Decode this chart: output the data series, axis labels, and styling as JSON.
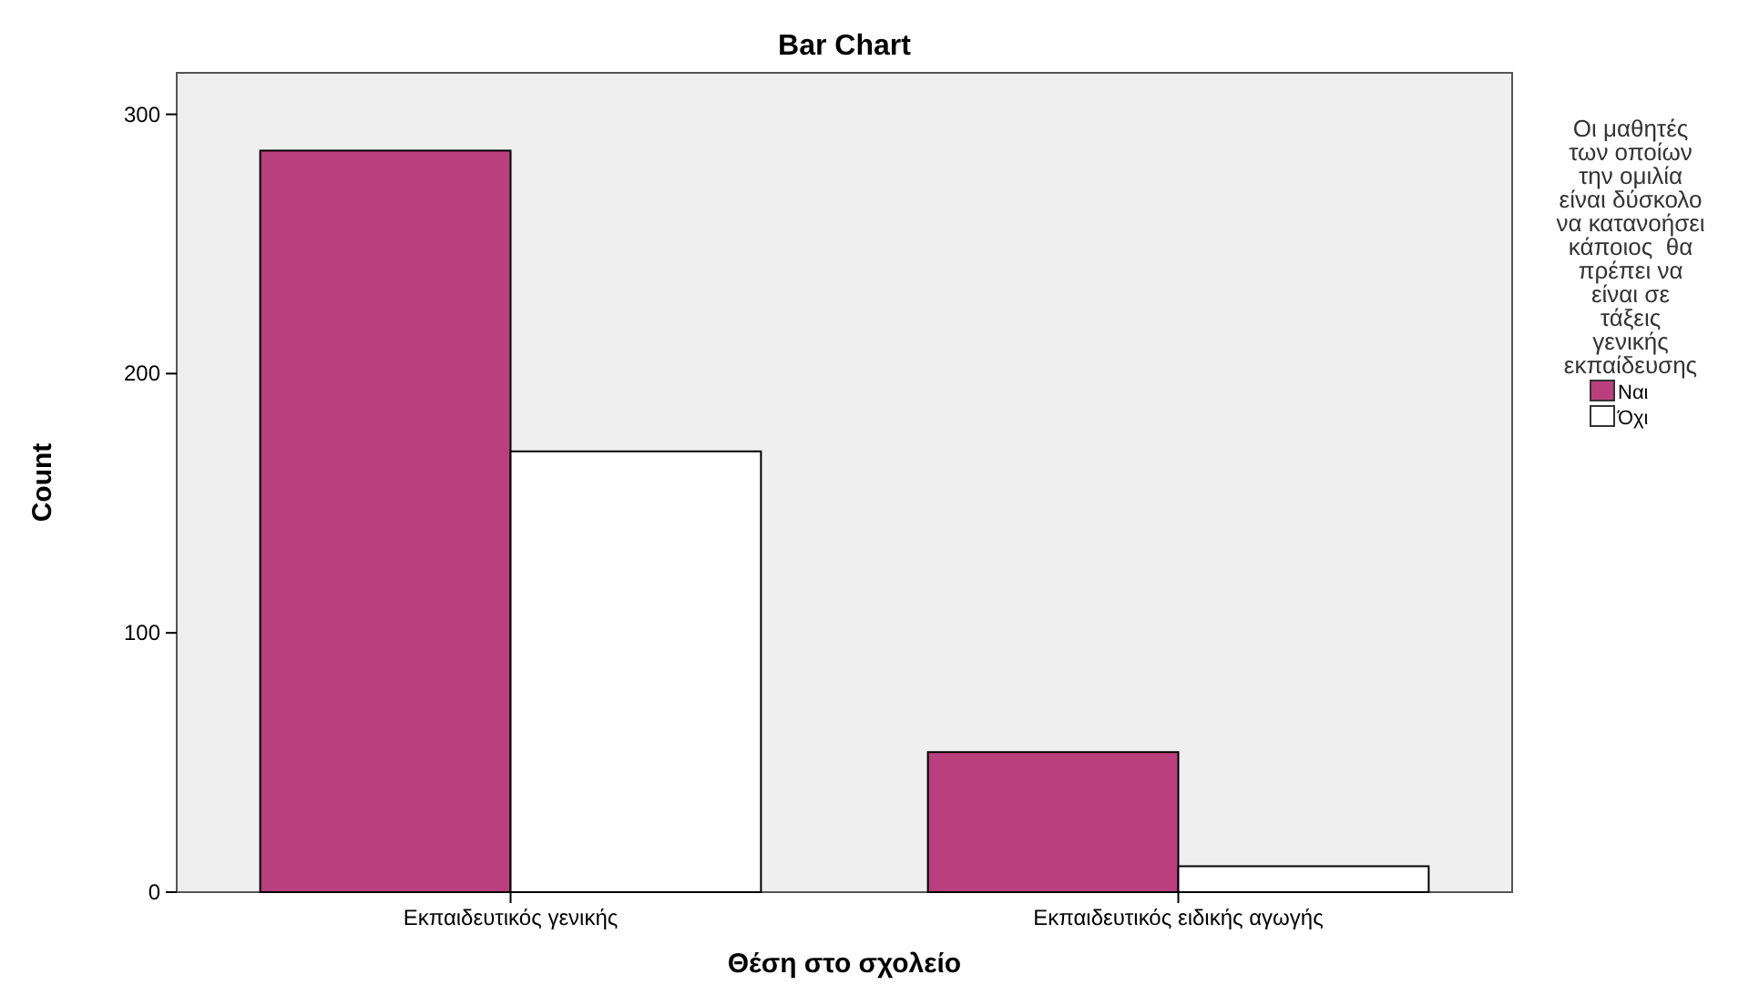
{
  "chart_data": {
    "type": "bar",
    "title": "Bar Chart",
    "xlabel": "Θέση στο σχολείο",
    "ylabel": "Count",
    "legend_title": "Οι μαθητές των οποίων την ομιλία είναι δύσκολο να κατανοήσει κάποιος  θα πρέπει να είναι σε τάξεις γενικής εκπαίδευσης",
    "categories": [
      "Εκπαιδευτικός γενικής",
      "Εκπαιδευτικός ειδικής αγωγής"
    ],
    "series": [
      {
        "name": "Ναι",
        "color": "#b9407c",
        "values": [
          286,
          54
        ]
      },
      {
        "name": "Όχι",
        "color": "#ffffff",
        "values": [
          170,
          10
        ]
      }
    ],
    "ylim": [
      0,
      316
    ],
    "yticks": [
      0,
      100,
      200,
      300
    ],
    "grid": false,
    "legend": "right"
  }
}
